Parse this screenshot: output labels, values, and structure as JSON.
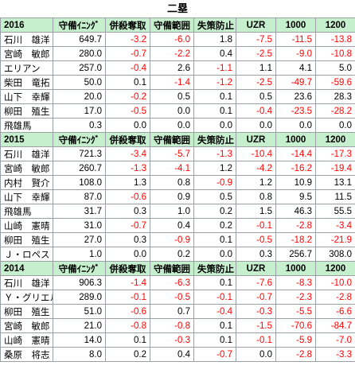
{
  "title": "二塁",
  "header_labels": [
    "守備ｲﾆﾝｸﾞ",
    "併殺奪取",
    "守備範囲",
    "失策防止",
    "UZR",
    "1000",
    "1200"
  ],
  "sections": [
    {
      "year": "2016",
      "rows": [
        {
          "name": "石川　雄洋",
          "values": [
            "649.7",
            "-3.2",
            "-6.0",
            "1.8",
            "-7.5",
            "-11.5",
            "-13.8"
          ]
        },
        {
          "name": "宮崎　敏郎",
          "values": [
            "280.0",
            "-0.7",
            "-2.2",
            "0.4",
            "-2.5",
            "-9.0",
            "-10.8"
          ]
        },
        {
          "name": "エリアン",
          "values": [
            "257.0",
            "-0.4",
            "2.6",
            "-1.1",
            "1.1",
            "4.1",
            "5.0"
          ]
        },
        {
          "name": "柴田　竜拓",
          "values": [
            "50.0",
            "0.1",
            "-1.4",
            "-1.2",
            "-2.5",
            "-49.7",
            "-59.6"
          ]
        },
        {
          "name": "山下　幸輝",
          "values": [
            "20.0",
            "-0.2",
            "0.5",
            "0.1",
            "0.5",
            "23.6",
            "28.3"
          ]
        },
        {
          "name": "柳田　殖生",
          "values": [
            "17.0",
            "-0.5",
            "0.0",
            "0.1",
            "-0.4",
            "-23.5",
            "-28.2"
          ]
        },
        {
          "name": "飛雄馬",
          "values": [
            "0.3",
            "0.0",
            "0.0",
            "0.0",
            "0.0",
            "0.0",
            "0.0"
          ]
        }
      ]
    },
    {
      "year": "2015",
      "rows": [
        {
          "name": "石川　雄洋",
          "values": [
            "721.3",
            "-3.4",
            "-5.7",
            "-1.3",
            "-10.4",
            "-14.4",
            "-17.3"
          ]
        },
        {
          "name": "宮崎　敏郎",
          "values": [
            "260.7",
            "-1.3",
            "-4.1",
            "1.2",
            "-4.2",
            "-16.2",
            "-19.4"
          ]
        },
        {
          "name": "内村　賢介",
          "values": [
            "108.0",
            "1.3",
            "0.8",
            "-0.9",
            "1.2",
            "10.9",
            "13.1"
          ]
        },
        {
          "name": "山下　幸輝",
          "values": [
            "87.0",
            "-0.6",
            "0.9",
            "0.5",
            "0.8",
            "9.5",
            "11.5"
          ]
        },
        {
          "name": "飛雄馬",
          "values": [
            "31.7",
            "0.3",
            "1.0",
            "0.2",
            "1.5",
            "46.3",
            "55.5"
          ]
        },
        {
          "name": "山崎　憲晴",
          "values": [
            "31.0",
            "-0.7",
            "0.4",
            "0.2",
            "-0.1",
            "-2.8",
            "-3.4"
          ]
        },
        {
          "name": "柳田　殖生",
          "values": [
            "27.0",
            "0.3",
            "-0.9",
            "0.1",
            "-0.5",
            "-18.2",
            "-21.9"
          ]
        },
        {
          "name": "Ｊ・ロペス",
          "values": [
            "1.0",
            "0.0",
            "0.2",
            "0.0",
            "0.3",
            "256.7",
            "308.0"
          ]
        }
      ]
    },
    {
      "year": "2014",
      "rows": [
        {
          "name": "石川　雄洋",
          "values": [
            "906.3",
            "-1.4",
            "-6.3",
            "0.1",
            "-7.6",
            "-8.3",
            "-10.0"
          ]
        },
        {
          "name": "Ｙ・グリエル",
          "values": [
            "289.0",
            "-0.1",
            "-0.5",
            "-0.1",
            "-0.7",
            "-2.3",
            "-2.8"
          ]
        },
        {
          "name": "柳田　殖生",
          "values": [
            "51.0",
            "-0.6",
            "0.7",
            "-0.4",
            "-0.3",
            "-5.5",
            "-6.6"
          ]
        },
        {
          "name": "宮崎　敏郎",
          "values": [
            "21.0",
            "-0.8",
            "-0.8",
            "0.1",
            "-1.5",
            "-70.6",
            "-84.7"
          ]
        },
        {
          "name": "山崎　憲晴",
          "values": [
            "14.0",
            "0.1",
            "-0.3",
            "0.1",
            "-0.1",
            "-5.9",
            "-7.0"
          ]
        },
        {
          "name": "桑原　将志",
          "values": [
            "8.0",
            "0.2",
            "0.4",
            "-0.7",
            "0.0",
            "-2.8",
            "-3.3"
          ]
        }
      ]
    }
  ]
}
